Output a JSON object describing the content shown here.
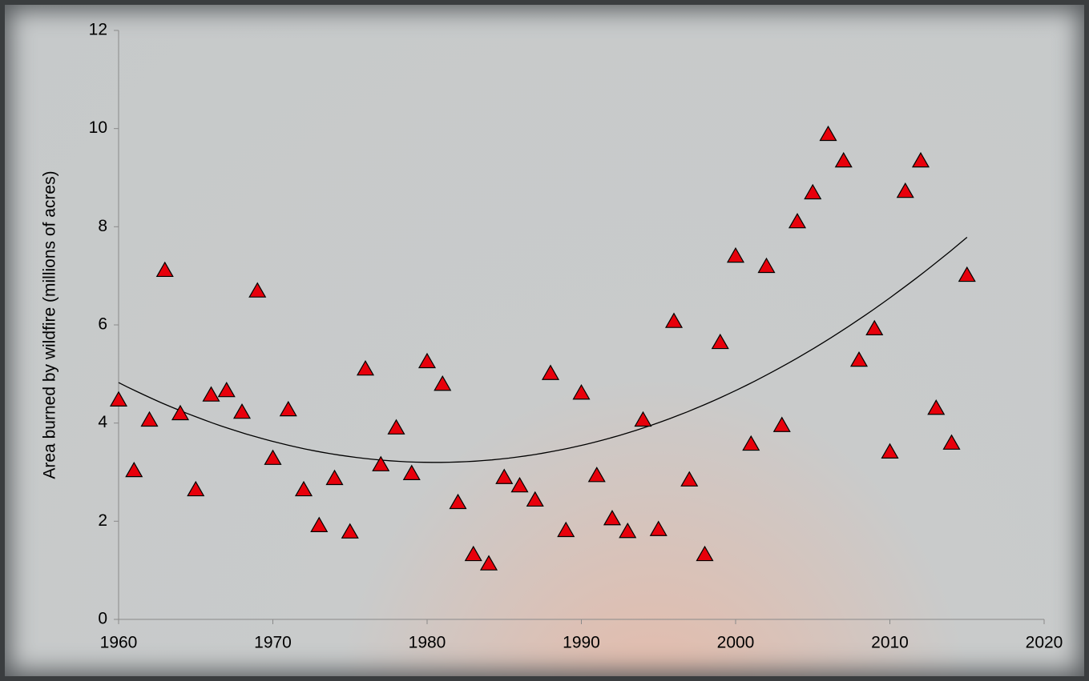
{
  "chart_data": {
    "type": "scatter",
    "y_label": "Area burned by wildfire (millions of acres)",
    "x": [
      1960,
      1961,
      1962,
      1963,
      1964,
      1965,
      1966,
      1967,
      1968,
      1969,
      1970,
      1971,
      1972,
      1973,
      1974,
      1975,
      1976,
      1977,
      1978,
      1979,
      1980,
      1981,
      1982,
      1983,
      1984,
      1985,
      1986,
      1987,
      1988,
      1989,
      1990,
      1991,
      1992,
      1993,
      1994,
      1995,
      1996,
      1997,
      1998,
      1999,
      2000,
      2001,
      2002,
      2003,
      2004,
      2005,
      2006,
      2007,
      2008,
      2009,
      2010,
      2011,
      2012,
      2013,
      2014,
      2015
    ],
    "values": [
      4.47,
      3.03,
      4.06,
      7.11,
      4.19,
      2.64,
      4.57,
      4.66,
      4.22,
      6.69,
      3.28,
      4.27,
      2.64,
      1.91,
      2.87,
      1.78,
      5.1,
      3.15,
      3.9,
      2.97,
      5.25,
      4.79,
      2.38,
      1.32,
      1.13,
      2.89,
      2.72,
      2.43,
      5.01,
      1.81,
      4.61,
      2.93,
      2.05,
      1.79,
      4.06,
      1.83,
      6.07,
      2.84,
      1.32,
      5.64,
      7.4,
      3.57,
      7.19,
      3.95,
      8.1,
      8.69,
      9.88,
      9.34,
      5.28,
      5.92,
      3.41,
      8.72,
      9.34,
      4.3,
      3.59,
      7.01
    ],
    "color": "#e8000b",
    "marker": "triangle",
    "trendline": {
      "type": "polynomial",
      "order": 2,
      "color": "#000000"
    },
    "xlim": [
      1960,
      2020
    ],
    "xticks": [
      1960,
      1970,
      1980,
      1990,
      2000,
      2010,
      2020
    ],
    "ylim": [
      0,
      12
    ],
    "yticks": [
      0,
      2,
      4,
      6,
      8,
      10,
      12
    ]
  }
}
